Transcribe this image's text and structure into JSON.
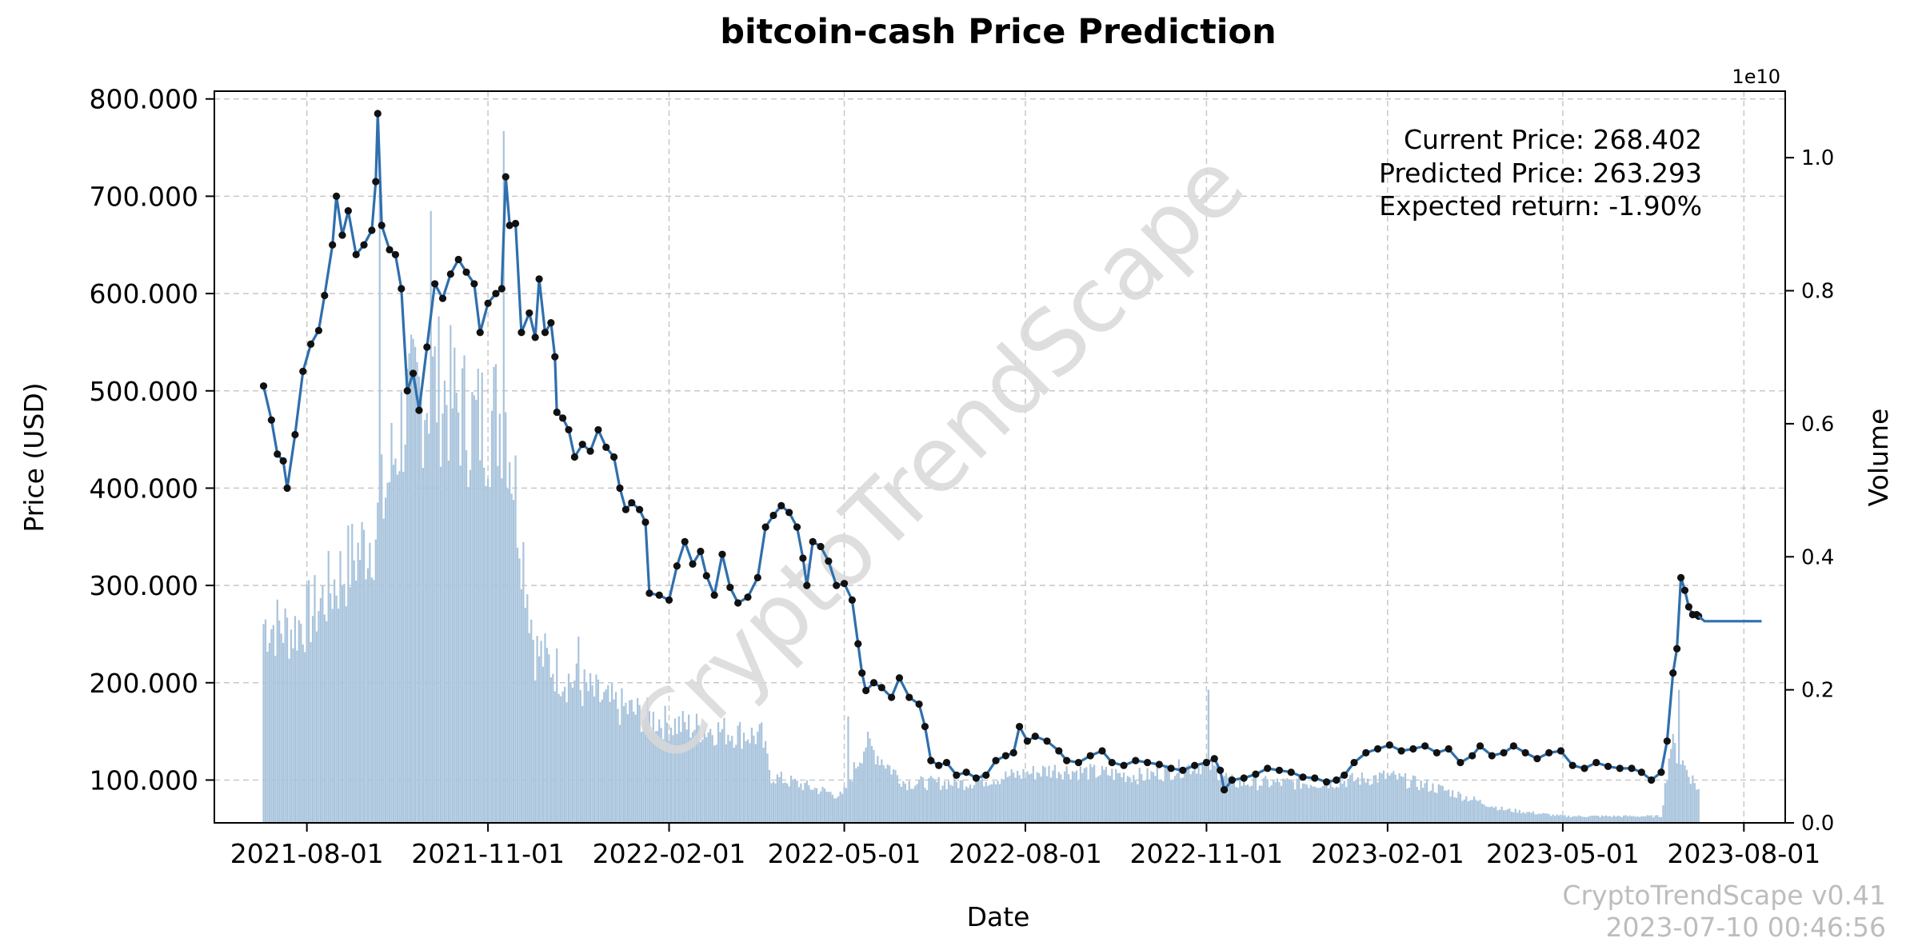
{
  "chart_data": {
    "type": "line",
    "title": "bitcoin-cash Price Prediction",
    "xlabel": "Date",
    "ylabel": "Price (USD)",
    "y2label": "Volume",
    "y2_multiplier": "1e10",
    "watermark": "CryptoTrendScape",
    "x_range": [
      "2021-06-15",
      "2023-08-22"
    ],
    "ylim": [
      56,
      808
    ],
    "y2lim": [
      0,
      1.1
    ],
    "grid": true,
    "y_ticks": [
      {
        "value": 100,
        "label": "100.000"
      },
      {
        "value": 200,
        "label": "200.000"
      },
      {
        "value": 300,
        "label": "300.000"
      },
      {
        "value": 400,
        "label": "400.000"
      },
      {
        "value": 500,
        "label": "500.000"
      },
      {
        "value": 600,
        "label": "600.000"
      },
      {
        "value": 700,
        "label": "700.000"
      },
      {
        "value": 800,
        "label": "800.000"
      }
    ],
    "y2_ticks": [
      {
        "value": 0.0,
        "label": "0.0"
      },
      {
        "value": 0.2,
        "label": "0.2"
      },
      {
        "value": 0.4,
        "label": "0.4"
      },
      {
        "value": 0.6,
        "label": "0.6"
      },
      {
        "value": 0.8,
        "label": "0.8"
      },
      {
        "value": 1.0,
        "label": "1.0"
      }
    ],
    "x_ticks": [
      {
        "value": "2021-08-01",
        "label": "2021-08-01"
      },
      {
        "value": "2021-11-01",
        "label": "2021-11-01"
      },
      {
        "value": "2022-02-01",
        "label": "2022-02-01"
      },
      {
        "value": "2022-05-01",
        "label": "2022-05-01"
      },
      {
        "value": "2022-08-01",
        "label": "2022-08-01"
      },
      {
        "value": "2022-11-01",
        "label": "2022-11-01"
      },
      {
        "value": "2023-02-01",
        "label": "2023-02-01"
      },
      {
        "value": "2023-05-01",
        "label": "2023-05-01"
      },
      {
        "value": "2023-08-01",
        "label": "2023-08-01"
      }
    ],
    "series": [
      {
        "type": "line",
        "color": "#2f6fad",
        "markers": true,
        "points": [
          [
            "2021-07-10",
            505
          ],
          [
            "2021-07-14",
            470
          ],
          [
            "2021-07-17",
            435
          ],
          [
            "2021-07-20",
            428
          ],
          [
            "2021-07-22",
            400
          ],
          [
            "2021-07-26",
            455
          ],
          [
            "2021-07-30",
            520
          ],
          [
            "2021-08-03",
            548
          ],
          [
            "2021-08-07",
            562
          ],
          [
            "2021-08-10",
            598
          ],
          [
            "2021-08-14",
            650
          ],
          [
            "2021-08-16",
            700
          ],
          [
            "2021-08-19",
            660
          ],
          [
            "2021-08-22",
            685
          ],
          [
            "2021-08-26",
            640
          ],
          [
            "2021-08-30",
            650
          ],
          [
            "2021-09-03",
            665
          ],
          [
            "2021-09-05",
            715
          ],
          [
            "2021-09-06",
            785
          ],
          [
            "2021-09-08",
            670
          ],
          [
            "2021-09-12",
            645
          ],
          [
            "2021-09-15",
            640
          ],
          [
            "2021-09-18",
            605
          ],
          [
            "2021-09-21",
            500
          ],
          [
            "2021-09-24",
            518
          ],
          [
            "2021-09-27",
            480
          ],
          [
            "2021-10-01",
            545
          ],
          [
            "2021-10-05",
            610
          ],
          [
            "2021-10-09",
            595
          ],
          [
            "2021-10-13",
            620
          ],
          [
            "2021-10-17",
            635
          ],
          [
            "2021-10-21",
            622
          ],
          [
            "2021-10-25",
            610
          ],
          [
            "2021-10-28",
            560
          ],
          [
            "2021-11-01",
            590
          ],
          [
            "2021-11-05",
            600
          ],
          [
            "2021-11-08",
            605
          ],
          [
            "2021-11-10",
            720
          ],
          [
            "2021-11-12",
            670
          ],
          [
            "2021-11-15",
            672
          ],
          [
            "2021-11-18",
            560
          ],
          [
            "2021-11-22",
            580
          ],
          [
            "2021-11-25",
            555
          ],
          [
            "2021-11-27",
            615
          ],
          [
            "2021-11-30",
            560
          ],
          [
            "2021-12-03",
            570
          ],
          [
            "2021-12-05",
            535
          ],
          [
            "2021-12-06",
            478
          ],
          [
            "2021-12-09",
            472
          ],
          [
            "2021-12-12",
            460
          ],
          [
            "2021-12-15",
            432
          ],
          [
            "2021-12-19",
            445
          ],
          [
            "2021-12-23",
            438
          ],
          [
            "2021-12-27",
            460
          ],
          [
            "2021-12-31",
            442
          ],
          [
            "2022-01-04",
            432
          ],
          [
            "2022-01-07",
            400
          ],
          [
            "2022-01-10",
            378
          ],
          [
            "2022-01-13",
            385
          ],
          [
            "2022-01-17",
            378
          ],
          [
            "2022-01-20",
            365
          ],
          [
            "2022-01-22",
            292
          ],
          [
            "2022-01-27",
            290
          ],
          [
            "2022-02-01",
            285
          ],
          [
            "2022-02-05",
            320
          ],
          [
            "2022-02-09",
            345
          ],
          [
            "2022-02-13",
            322
          ],
          [
            "2022-02-17",
            335
          ],
          [
            "2022-02-20",
            310
          ],
          [
            "2022-02-24",
            290
          ],
          [
            "2022-02-28",
            332
          ],
          [
            "2022-03-04",
            298
          ],
          [
            "2022-03-08",
            282
          ],
          [
            "2022-03-13",
            288
          ],
          [
            "2022-03-18",
            308
          ],
          [
            "2022-03-22",
            360
          ],
          [
            "2022-03-26",
            372
          ],
          [
            "2022-03-30",
            382
          ],
          [
            "2022-04-03",
            375
          ],
          [
            "2022-04-07",
            360
          ],
          [
            "2022-04-10",
            328
          ],
          [
            "2022-04-12",
            300
          ],
          [
            "2022-04-15",
            345
          ],
          [
            "2022-04-19",
            340
          ],
          [
            "2022-04-23",
            325
          ],
          [
            "2022-04-27",
            300
          ],
          [
            "2022-05-01",
            302
          ],
          [
            "2022-05-05",
            285
          ],
          [
            "2022-05-08",
            240
          ],
          [
            "2022-05-10",
            210
          ],
          [
            "2022-05-12",
            192
          ],
          [
            "2022-05-16",
            200
          ],
          [
            "2022-05-20",
            195
          ],
          [
            "2022-05-25",
            185
          ],
          [
            "2022-05-29",
            205
          ],
          [
            "2022-06-03",
            185
          ],
          [
            "2022-06-08",
            178
          ],
          [
            "2022-06-11",
            155
          ],
          [
            "2022-06-14",
            120
          ],
          [
            "2022-06-18",
            115
          ],
          [
            "2022-06-22",
            118
          ],
          [
            "2022-06-27",
            105
          ],
          [
            "2022-07-02",
            108
          ],
          [
            "2022-07-07",
            102
          ],
          [
            "2022-07-12",
            105
          ],
          [
            "2022-07-17",
            120
          ],
          [
            "2022-07-22",
            125
          ],
          [
            "2022-07-26",
            128
          ],
          [
            "2022-07-29",
            155
          ],
          [
            "2022-08-02",
            140
          ],
          [
            "2022-08-06",
            145
          ],
          [
            "2022-08-12",
            140
          ],
          [
            "2022-08-18",
            130
          ],
          [
            "2022-08-22",
            120
          ],
          [
            "2022-08-28",
            118
          ],
          [
            "2022-09-03",
            125
          ],
          [
            "2022-09-09",
            130
          ],
          [
            "2022-09-14",
            118
          ],
          [
            "2022-09-20",
            115
          ],
          [
            "2022-09-26",
            120
          ],
          [
            "2022-10-02",
            118
          ],
          [
            "2022-10-08",
            116
          ],
          [
            "2022-10-14",
            112
          ],
          [
            "2022-10-20",
            110
          ],
          [
            "2022-10-26",
            115
          ],
          [
            "2022-11-01",
            118
          ],
          [
            "2022-11-05",
            122
          ],
          [
            "2022-11-08",
            110
          ],
          [
            "2022-11-10",
            90
          ],
          [
            "2022-11-14",
            100
          ],
          [
            "2022-11-20",
            102
          ],
          [
            "2022-11-26",
            106
          ],
          [
            "2022-12-02",
            112
          ],
          [
            "2022-12-08",
            110
          ],
          [
            "2022-12-14",
            108
          ],
          [
            "2022-12-20",
            103
          ],
          [
            "2022-12-26",
            102
          ],
          [
            "2023-01-01",
            98
          ],
          [
            "2023-01-06",
            100
          ],
          [
            "2023-01-10",
            105
          ],
          [
            "2023-01-15",
            118
          ],
          [
            "2023-01-21",
            128
          ],
          [
            "2023-01-27",
            132
          ],
          [
            "2023-02-02",
            136
          ],
          [
            "2023-02-08",
            130
          ],
          [
            "2023-02-14",
            132
          ],
          [
            "2023-02-20",
            135
          ],
          [
            "2023-02-26",
            128
          ],
          [
            "2023-03-04",
            132
          ],
          [
            "2023-03-10",
            118
          ],
          [
            "2023-03-16",
            125
          ],
          [
            "2023-03-20",
            135
          ],
          [
            "2023-03-26",
            125
          ],
          [
            "2023-04-01",
            128
          ],
          [
            "2023-04-06",
            135
          ],
          [
            "2023-04-12",
            128
          ],
          [
            "2023-04-18",
            122
          ],
          [
            "2023-04-24",
            128
          ],
          [
            "2023-04-30",
            130
          ],
          [
            "2023-05-06",
            115
          ],
          [
            "2023-05-12",
            112
          ],
          [
            "2023-05-18",
            118
          ],
          [
            "2023-05-24",
            114
          ],
          [
            "2023-05-30",
            112
          ],
          [
            "2023-06-05",
            112
          ],
          [
            "2023-06-10",
            108
          ],
          [
            "2023-06-15",
            100
          ],
          [
            "2023-06-20",
            108
          ],
          [
            "2023-06-23",
            140
          ],
          [
            "2023-06-26",
            210
          ],
          [
            "2023-06-28",
            235
          ],
          [
            "2023-06-30",
            308
          ],
          [
            "2023-07-02",
            295
          ],
          [
            "2023-07-04",
            278
          ],
          [
            "2023-07-06",
            270
          ],
          [
            "2023-07-08",
            270
          ],
          [
            "2023-07-09",
            268.402
          ]
        ]
      },
      {
        "type": "line",
        "color": "#2f6fad",
        "markers": false,
        "points": [
          [
            "2023-07-09",
            268.402
          ],
          [
            "2023-07-12",
            263.293
          ],
          [
            "2023-08-10",
            263.293
          ]
        ]
      }
    ],
    "volume_profile": [
      [
        "2021-07-10",
        0.3
      ],
      [
        "2021-07-25",
        0.29
      ],
      [
        "2021-08-05",
        0.32
      ],
      [
        "2021-08-20",
        0.38
      ],
      [
        "2021-09-05",
        0.44
      ],
      [
        "2021-09-20",
        0.62
      ],
      [
        "2021-10-05",
        0.66
      ],
      [
        "2021-10-25",
        0.6
      ],
      [
        "2021-11-10",
        0.62
      ],
      [
        "2021-11-25",
        0.26
      ],
      [
        "2021-12-10",
        0.22
      ],
      [
        "2022-01-01",
        0.18
      ],
      [
        "2022-01-31",
        0.15
      ],
      [
        "2022-03-20",
        0.13
      ],
      [
        "2022-03-25",
        0.07
      ],
      [
        "2022-04-30",
        0.04
      ],
      [
        "2022-05-12",
        0.12
      ],
      [
        "2022-06-01",
        0.06
      ],
      [
        "2022-07-01",
        0.06
      ],
      [
        "2022-08-15",
        0.08
      ],
      [
        "2022-10-01",
        0.07
      ],
      [
        "2022-11-01",
        0.09
      ],
      [
        "2022-11-15",
        0.06
      ],
      [
        "2022-12-31",
        0.06
      ],
      [
        "2023-02-01",
        0.07
      ],
      [
        "2023-03-01",
        0.05
      ],
      [
        "2023-04-01",
        0.02
      ],
      [
        "2023-05-01",
        0.01
      ],
      [
        "2023-06-20",
        0.01
      ],
      [
        "2023-06-25",
        0.12
      ],
      [
        "2023-07-01",
        0.09
      ],
      [
        "2023-07-09",
        0.05
      ]
    ],
    "volume_spikes": [
      [
        "2021-09-07",
        0.96
      ],
      [
        "2021-11-09",
        1.04
      ],
      [
        "2021-10-03",
        0.92
      ],
      [
        "2021-12-17",
        0.28
      ],
      [
        "2022-11-02",
        0.2
      ],
      [
        "2022-05-03",
        0.16
      ],
      [
        "2023-06-29",
        0.2
      ]
    ],
    "annotations": {
      "current_price": "Current Price: 268.402",
      "predicted_price": "Predicted Price: 263.293",
      "expected_return": "Expected return: -1.90%"
    }
  },
  "footer": {
    "version": "CryptoTrendScape v0.41",
    "timestamp": "2023-07-10 00:46:56"
  },
  "colors": {
    "price_line": "#2f6fad",
    "volume_bars": "#a9c4dc",
    "markers": "#111111",
    "grid": "#c8c8c8",
    "watermark": "#d9d9d9",
    "footer_text": "#bdbdbd"
  }
}
